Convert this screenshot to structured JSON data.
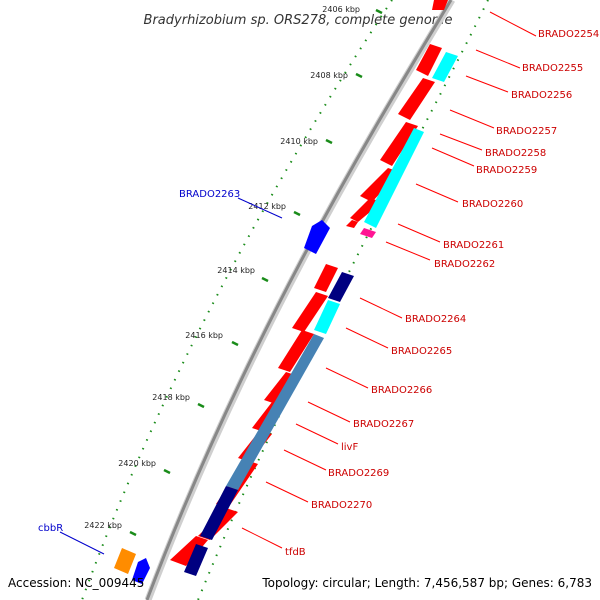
{
  "title": "Bradyrhizobium sp. ORS278, complete genome",
  "footer": {
    "accession": "Accession: NC_009445",
    "summary": "Topology: circular; Length: 7,456,587 bp; Genes: 6,783"
  },
  "ticks": [
    {
      "label": "2406 kbp",
      "value": 2406
    },
    {
      "label": "2408 kbp",
      "value": 2408
    },
    {
      "label": "2410 kbp",
      "value": 2410
    },
    {
      "label": "2412 kbp",
      "value": 2412
    },
    {
      "label": "2414 kbp",
      "value": 2414
    },
    {
      "label": "2416 kbp",
      "value": 2416
    },
    {
      "label": "2418 kbp",
      "value": 2418
    },
    {
      "label": "2420 kbp",
      "value": 2420
    },
    {
      "label": "2422 kbp",
      "value": 2422
    }
  ],
  "gene_labels_right": [
    "BRADO2254",
    "BRADO2255",
    "BRADO2256",
    "BRADO2257",
    "BRADO2258",
    "BRADO2259",
    "BRADO2260",
    "BRADO2261",
    "BRADO2262",
    "BRADO2264",
    "BRADO2265",
    "BRADO2266",
    "BRADO2267",
    "livF",
    "BRADO2269",
    "BRADO2270",
    "tfdB"
  ],
  "gene_labels_left": [
    "BRADO2263",
    "cbbR"
  ],
  "colors": {
    "forward_genes": "#ff0000",
    "reverse_genes": "#0000ff",
    "cyan_track": "#00ffff",
    "navy_track": "#000080",
    "steel_track": "#4682b4",
    "magenta_track": "#ff1493",
    "orange_gene": "#ff8c00",
    "backbone": "#888888",
    "right_label": "#cc0000",
    "left_label": "#0000cc"
  }
}
